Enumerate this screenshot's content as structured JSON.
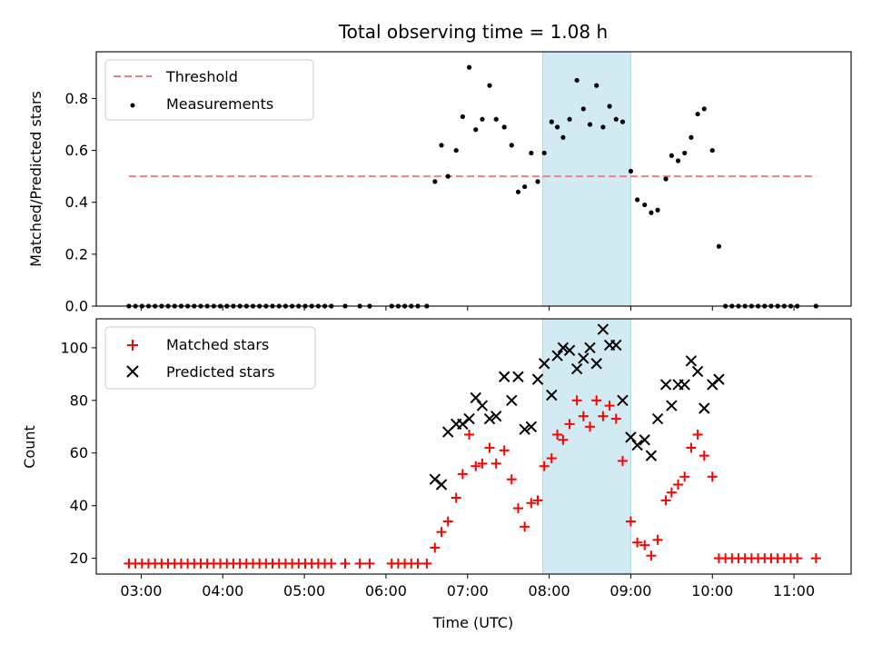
{
  "chart_data": {
    "type": "scatter",
    "title": "Total observing time = 1.08 h",
    "xlabel": "Time (UTC)",
    "x_ticks": [
      "03:00",
      "04:00",
      "05:00",
      "06:00",
      "07:00",
      "08:00",
      "09:00",
      "10:00",
      "11:00"
    ],
    "x_range_hours": [
      2.45,
      11.7
    ],
    "highlight_span_hours": [
      7.92,
      9.0
    ],
    "highlight_color": "#add8e6",
    "top": {
      "ylabel": "Matched/Predicted stars",
      "ylim": [
        0,
        0.98
      ],
      "y_ticks": [
        0.0,
        0.2,
        0.4,
        0.6,
        0.8
      ],
      "y_tick_labels": [
        "0.0",
        "0.2",
        "0.4",
        "0.6",
        "0.8"
      ],
      "threshold": {
        "label": "Threshold",
        "value": 0.5,
        "x_range_hours": [
          2.85,
          11.27
        ],
        "color": "#f08080"
      },
      "measurements": {
        "label": "Measurements",
        "color": "#000000",
        "points": [
          [
            2.85,
            0
          ],
          [
            2.93,
            0
          ],
          [
            3.01,
            0
          ],
          [
            3.09,
            0
          ],
          [
            3.17,
            0
          ],
          [
            3.25,
            0
          ],
          [
            3.33,
            0
          ],
          [
            3.41,
            0
          ],
          [
            3.49,
            0
          ],
          [
            3.57,
            0
          ],
          [
            3.65,
            0
          ],
          [
            3.73,
            0
          ],
          [
            3.81,
            0
          ],
          [
            3.89,
            0
          ],
          [
            3.97,
            0
          ],
          [
            4.05,
            0
          ],
          [
            4.13,
            0
          ],
          [
            4.21,
            0
          ],
          [
            4.29,
            0
          ],
          [
            4.37,
            0
          ],
          [
            4.45,
            0
          ],
          [
            4.53,
            0
          ],
          [
            4.61,
            0
          ],
          [
            4.69,
            0
          ],
          [
            4.77,
            0
          ],
          [
            4.85,
            0
          ],
          [
            4.93,
            0
          ],
          [
            5.01,
            0
          ],
          [
            5.09,
            0
          ],
          [
            5.17,
            0
          ],
          [
            5.25,
            0
          ],
          [
            5.33,
            0
          ],
          [
            5.5,
            0
          ],
          [
            5.68,
            0
          ],
          [
            5.8,
            0
          ],
          [
            6.07,
            0
          ],
          [
            6.15,
            0
          ],
          [
            6.23,
            0
          ],
          [
            6.31,
            0
          ],
          [
            6.39,
            0
          ],
          [
            6.5,
            0
          ],
          [
            6.6,
            0.48
          ],
          [
            6.68,
            0.62
          ],
          [
            6.76,
            0.5
          ],
          [
            6.86,
            0.6
          ],
          [
            6.94,
            0.73
          ],
          [
            7.02,
            0.92
          ],
          [
            7.1,
            0.68
          ],
          [
            7.18,
            0.72
          ],
          [
            7.27,
            0.85
          ],
          [
            7.35,
            0.72
          ],
          [
            7.45,
            0.69
          ],
          [
            7.54,
            0.62
          ],
          [
            7.62,
            0.44
          ],
          [
            7.7,
            0.46
          ],
          [
            7.78,
            0.59
          ],
          [
            7.86,
            0.48
          ],
          [
            7.94,
            0.59
          ],
          [
            8.03,
            0.71
          ],
          [
            8.1,
            0.69
          ],
          [
            8.17,
            0.65
          ],
          [
            8.25,
            0.72
          ],
          [
            8.34,
            0.87
          ],
          [
            8.42,
            0.76
          ],
          [
            8.5,
            0.7
          ],
          [
            8.58,
            0.85
          ],
          [
            8.66,
            0.69
          ],
          [
            8.74,
            0.77
          ],
          [
            8.82,
            0.72
          ],
          [
            8.9,
            0.71
          ],
          [
            9.0,
            0.52
          ],
          [
            9.08,
            0.41
          ],
          [
            9.17,
            0.39
          ],
          [
            9.25,
            0.36
          ],
          [
            9.33,
            0.37
          ],
          [
            9.43,
            0.49
          ],
          [
            9.5,
            0.58
          ],
          [
            9.58,
            0.56
          ],
          [
            9.66,
            0.59
          ],
          [
            9.74,
            0.65
          ],
          [
            9.82,
            0.74
          ],
          [
            9.9,
            0.76
          ],
          [
            10.0,
            0.6
          ],
          [
            10.08,
            0.23
          ],
          [
            10.16,
            0
          ],
          [
            10.24,
            0
          ],
          [
            10.32,
            0
          ],
          [
            10.4,
            0
          ],
          [
            10.48,
            0
          ],
          [
            10.56,
            0
          ],
          [
            10.64,
            0
          ],
          [
            10.72,
            0
          ],
          [
            10.8,
            0
          ],
          [
            10.88,
            0
          ],
          [
            10.96,
            0
          ],
          [
            11.04,
            0
          ],
          [
            11.27,
            0
          ]
        ]
      }
    },
    "bottom": {
      "ylabel": "Count",
      "ylim": [
        14,
        111
      ],
      "y_ticks": [
        20,
        40,
        60,
        80,
        100
      ],
      "y_tick_labels": [
        "20",
        "40",
        "60",
        "80",
        "100"
      ],
      "matched": {
        "label": "Matched stars",
        "color": "#ff0000",
        "points": [
          [
            2.85,
            18
          ],
          [
            2.93,
            18
          ],
          [
            3.01,
            18
          ],
          [
            3.09,
            18
          ],
          [
            3.17,
            18
          ],
          [
            3.25,
            18
          ],
          [
            3.33,
            18
          ],
          [
            3.41,
            18
          ],
          [
            3.49,
            18
          ],
          [
            3.57,
            18
          ],
          [
            3.65,
            18
          ],
          [
            3.73,
            18
          ],
          [
            3.81,
            18
          ],
          [
            3.89,
            18
          ],
          [
            3.97,
            18
          ],
          [
            4.05,
            18
          ],
          [
            4.13,
            18
          ],
          [
            4.21,
            18
          ],
          [
            4.29,
            18
          ],
          [
            4.37,
            18
          ],
          [
            4.45,
            18
          ],
          [
            4.53,
            18
          ],
          [
            4.61,
            18
          ],
          [
            4.69,
            18
          ],
          [
            4.77,
            18
          ],
          [
            4.85,
            18
          ],
          [
            4.93,
            18
          ],
          [
            5.01,
            18
          ],
          [
            5.09,
            18
          ],
          [
            5.17,
            18
          ],
          [
            5.25,
            18
          ],
          [
            5.33,
            18
          ],
          [
            5.5,
            18
          ],
          [
            5.68,
            18
          ],
          [
            5.8,
            18
          ],
          [
            6.07,
            18
          ],
          [
            6.15,
            18
          ],
          [
            6.23,
            18
          ],
          [
            6.31,
            18
          ],
          [
            6.39,
            18
          ],
          [
            6.5,
            18
          ],
          [
            6.6,
            24
          ],
          [
            6.68,
            30
          ],
          [
            6.76,
            34
          ],
          [
            6.86,
            43
          ],
          [
            6.94,
            52
          ],
          [
            7.02,
            67
          ],
          [
            7.1,
            55
          ],
          [
            7.18,
            56
          ],
          [
            7.27,
            62
          ],
          [
            7.35,
            56
          ],
          [
            7.45,
            61
          ],
          [
            7.54,
            50
          ],
          [
            7.62,
            39
          ],
          [
            7.7,
            32
          ],
          [
            7.78,
            41
          ],
          [
            7.86,
            42
          ],
          [
            7.94,
            55
          ],
          [
            8.03,
            58
          ],
          [
            8.1,
            67
          ],
          [
            8.17,
            65
          ],
          [
            8.25,
            71
          ],
          [
            8.34,
            80
          ],
          [
            8.42,
            74
          ],
          [
            8.5,
            70
          ],
          [
            8.58,
            80
          ],
          [
            8.66,
            74
          ],
          [
            8.74,
            78
          ],
          [
            8.82,
            73
          ],
          [
            8.9,
            57
          ],
          [
            9.0,
            34
          ],
          [
            9.08,
            26
          ],
          [
            9.17,
            25
          ],
          [
            9.25,
            21
          ],
          [
            9.33,
            27
          ],
          [
            9.43,
            42
          ],
          [
            9.5,
            45
          ],
          [
            9.58,
            48
          ],
          [
            9.66,
            51
          ],
          [
            9.74,
            62
          ],
          [
            9.82,
            67
          ],
          [
            9.9,
            59
          ],
          [
            10.0,
            51
          ],
          [
            10.08,
            20
          ],
          [
            10.16,
            20
          ],
          [
            10.24,
            20
          ],
          [
            10.32,
            20
          ],
          [
            10.4,
            20
          ],
          [
            10.48,
            20
          ],
          [
            10.56,
            20
          ],
          [
            10.64,
            20
          ],
          [
            10.72,
            20
          ],
          [
            10.8,
            20
          ],
          [
            10.88,
            20
          ],
          [
            10.96,
            20
          ],
          [
            11.04,
            20
          ],
          [
            11.27,
            20
          ]
        ]
      },
      "predicted": {
        "label": "Predicted stars",
        "color": "#000000",
        "points": [
          [
            6.6,
            50
          ],
          [
            6.68,
            48
          ],
          [
            6.76,
            68
          ],
          [
            6.86,
            71
          ],
          [
            6.94,
            71
          ],
          [
            7.02,
            73
          ],
          [
            7.1,
            81
          ],
          [
            7.18,
            78
          ],
          [
            7.27,
            73
          ],
          [
            7.35,
            74
          ],
          [
            7.45,
            89
          ],
          [
            7.54,
            80
          ],
          [
            7.62,
            89
          ],
          [
            7.7,
            69
          ],
          [
            7.78,
            70
          ],
          [
            7.86,
            88
          ],
          [
            7.94,
            94
          ],
          [
            8.03,
            82
          ],
          [
            8.1,
            97
          ],
          [
            8.17,
            100
          ],
          [
            8.25,
            99
          ],
          [
            8.34,
            92
          ],
          [
            8.42,
            96
          ],
          [
            8.5,
            100
          ],
          [
            8.58,
            94
          ],
          [
            8.66,
            107
          ],
          [
            8.74,
            101
          ],
          [
            8.82,
            101
          ],
          [
            8.9,
            80
          ],
          [
            9.0,
            66
          ],
          [
            9.08,
            63
          ],
          [
            9.17,
            65
          ],
          [
            9.25,
            59
          ],
          [
            9.33,
            73
          ],
          [
            9.43,
            86
          ],
          [
            9.5,
            78
          ],
          [
            9.58,
            86
          ],
          [
            9.66,
            86
          ],
          [
            9.74,
            95
          ],
          [
            9.82,
            91
          ],
          [
            9.9,
            77
          ],
          [
            10.0,
            86
          ],
          [
            10.08,
            88
          ]
        ]
      }
    }
  }
}
